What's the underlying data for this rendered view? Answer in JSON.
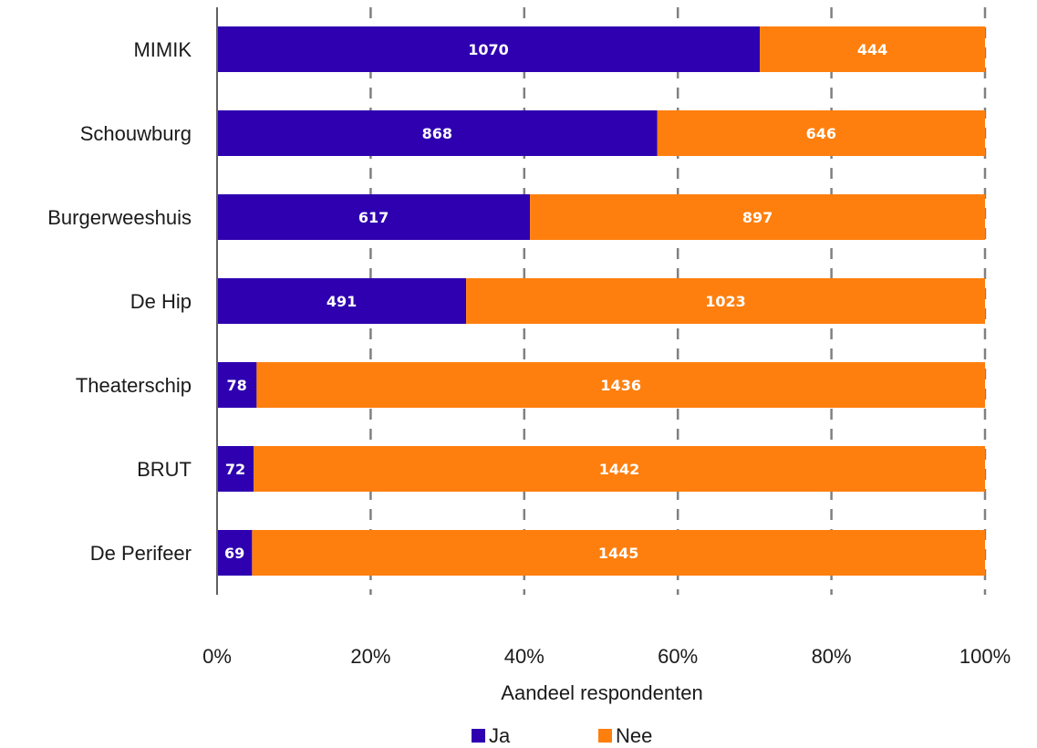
{
  "chart_data": {
    "type": "bar",
    "orientation": "horizontal",
    "stacked": true,
    "normalized": true,
    "categories": [
      "MIMIK",
      "Schouwburg",
      "Burgerweeshuis",
      "De Hip",
      "Theaterschip",
      "BRUT",
      "De Perifeer"
    ],
    "series": [
      {
        "name": "Ja",
        "color": "#2e00b0",
        "values": [
          1070,
          868,
          617,
          491,
          78,
          72,
          69
        ]
      },
      {
        "name": "Nee",
        "color": "#ff7f0e",
        "values": [
          444,
          646,
          897,
          1023,
          1436,
          1442,
          1445
        ]
      }
    ],
    "xlabel": "Aandeel respondenten",
    "xlim": [
      0,
      100
    ],
    "x_ticks": [
      "0%",
      "20%",
      "40%",
      "60%",
      "80%",
      "100%"
    ],
    "grid": "vertical dashed",
    "legend": "bottom-center"
  }
}
